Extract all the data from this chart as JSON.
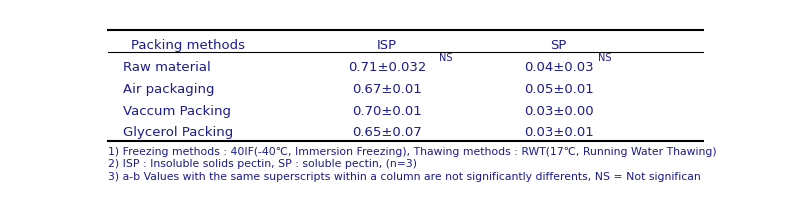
{
  "col_headers": [
    "Packing methods",
    "ISP",
    "SP"
  ],
  "rows": [
    [
      "Raw material",
      "0.71±0.032",
      "NS",
      "0.04±0.03",
      "NS"
    ],
    [
      "Air packaging",
      "0.67±0.01",
      "",
      "0.05±0.01",
      ""
    ],
    [
      "Vaccum Packing",
      "0.70±0.01",
      "",
      "0.03±0.00",
      ""
    ],
    [
      "Glycerol Packing",
      "0.65±0.07",
      "",
      "0.03±0.01",
      ""
    ]
  ],
  "footnotes": [
    "1) Freezing methods : 40IF(-40℃, Immersion Freezing), Thawing methods : RWT(17℃, Running Water Thawing)",
    "2) ISP : Insoluble solids pectin, SP : soluble pectin, (n=3)",
    "3) a-b Values with the same superscripts within a column are not significantly differents, NS = Not significan"
  ],
  "header_fontsize": 9.5,
  "cell_fontsize": 9.5,
  "footnote_fontsize": 7.8,
  "bg_color": "#ffffff",
  "line_color": "#000000",
  "text_color": "#1c1c8a"
}
